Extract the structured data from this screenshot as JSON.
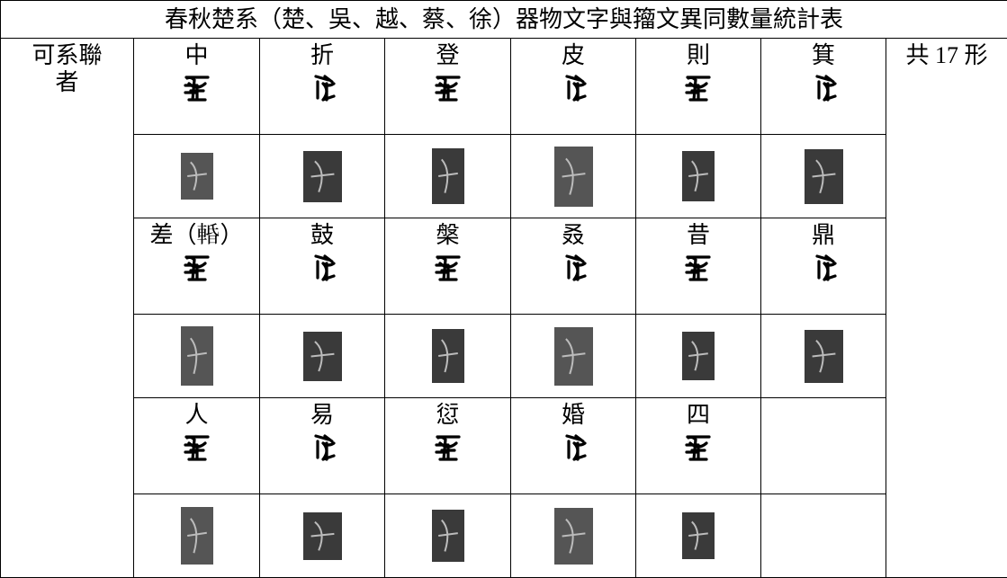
{
  "header": {
    "title": "春秋楚系（楚、吳、越、蔡、徐）器物文字與籀文異同數量統計表"
  },
  "table": {
    "lead": "可系聯者",
    "note": "共 17 形",
    "groups": [
      [
        "中",
        "折",
        "登",
        "皮",
        "則",
        "箕"
      ],
      [
        "差（𨌲）",
        "鼓",
        "槃",
        "叒",
        "昔",
        "鼎"
      ],
      [
        "人",
        "易",
        "愆",
        "婚",
        "四"
      ]
    ]
  }
}
